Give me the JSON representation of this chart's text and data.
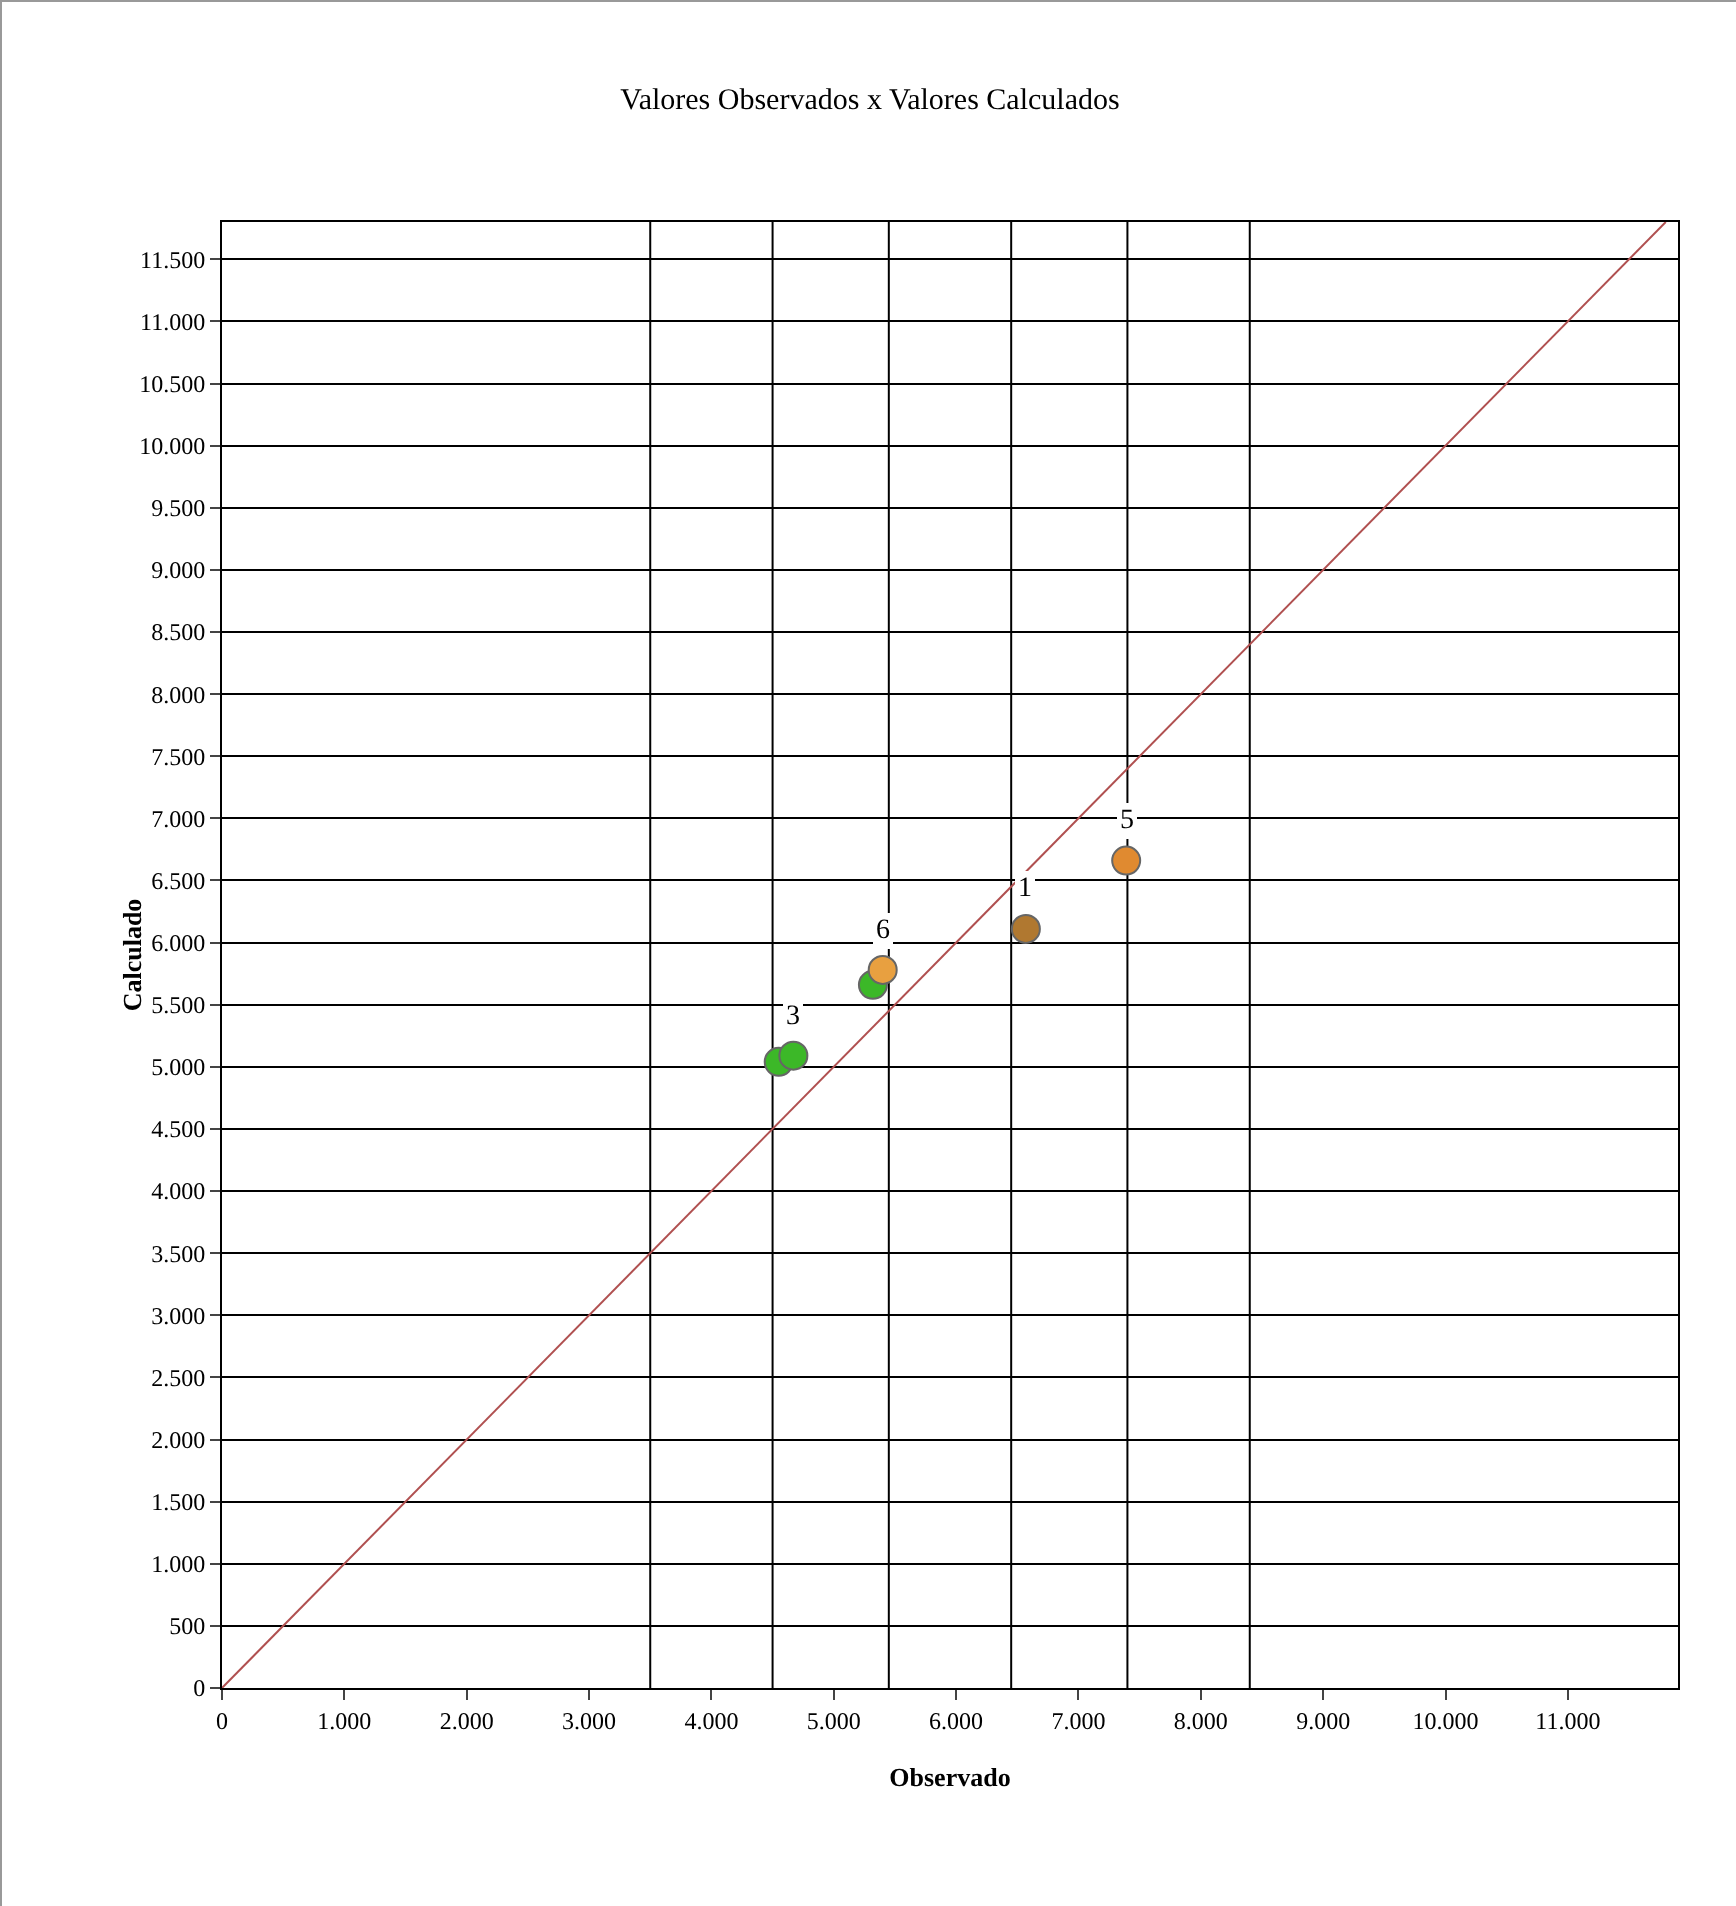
{
  "chart_data": {
    "type": "scatter",
    "title": "Valores Observados x Valores Calculados",
    "xlabel": "Observado",
    "ylabel": "Calculado",
    "series": [
      {
        "x": [
          4550,
          4670,
          5320,
          5400,
          6570,
          7390
        ],
        "values": [
          5040,
          5090,
          5660,
          5780,
          6110,
          6660
        ],
        "colors": [
          "#3cb828",
          "#3cb828",
          "#3cb828",
          "#e8a040",
          "#b07830",
          "#e08a30"
        ]
      },
      {
        "type": "line",
        "x": [
          0,
          11800
        ],
        "values": [
          0,
          11800
        ],
        "color": "#b05050",
        "marker": "none"
      }
    ],
    "annotations": [
      {
        "text": "3",
        "x": 4670,
        "y": 5090
      },
      {
        "text": "6",
        "x": 5400,
        "y": 5780
      },
      {
        "text": "1",
        "x": 6570,
        "y": 6110
      },
      {
        "text": "5",
        "x": 7390,
        "y": 6660
      }
    ],
    "ref_lines": [
      {
        "axis": "x",
        "value": 3500,
        "color": "#000000"
      },
      {
        "axis": "x",
        "value": 4500,
        "color": "#000000"
      },
      {
        "axis": "x",
        "value": 5450,
        "color": "#000000"
      },
      {
        "axis": "x",
        "value": 6450,
        "color": "#000000"
      },
      {
        "axis": "x",
        "value": 7400,
        "color": "#000000"
      },
      {
        "axis": "x",
        "value": 8400,
        "color": "#000000"
      }
    ],
    "xlim": [
      0,
      11900
    ],
    "ylim": [
      0,
      11800
    ],
    "xticks": [
      0,
      {
        "value": 1000,
        "label": "1.000"
      },
      {
        "value": 2000,
        "label": "2.000"
      },
      {
        "value": 3000,
        "label": "3.000"
      },
      {
        "value": 4000,
        "label": "4.000"
      },
      {
        "value": 5000,
        "label": "5.000"
      },
      {
        "value": 6000,
        "label": "6.000"
      },
      {
        "value": 7000,
        "label": "7.000"
      },
      {
        "value": 8000,
        "label": "8.000"
      },
      {
        "value": 9000,
        "label": "9.000"
      },
      {
        "value": 10000,
        "label": "10.000"
      },
      {
        "value": 11000,
        "label": "11.000"
      }
    ],
    "yticks": [
      0,
      500,
      {
        "value": 1000,
        "label": "1.000"
      },
      {
        "value": 1500,
        "label": "1.500"
      },
      {
        "value": 2000,
        "label": "2.000"
      },
      {
        "value": 2500,
        "label": "2.500"
      },
      {
        "value": 3000,
        "label": "3.000"
      },
      {
        "value": 3500,
        "label": "3.500"
      },
      {
        "value": 4000,
        "label": "4.000"
      },
      {
        "value": 4500,
        "label": "4.500"
      },
      {
        "value": 5000,
        "label": "5.000"
      },
      {
        "value": 5500,
        "label": "5.500"
      },
      {
        "value": 6000,
        "label": "6.000"
      },
      {
        "value": 6500,
        "label": "6.500"
      },
      {
        "value": 7000,
        "label": "7.000"
      },
      {
        "value": 7500,
        "label": "7.500"
      },
      {
        "value": 8000,
        "label": "8.000"
      },
      {
        "value": 8500,
        "label": "8.500"
      },
      {
        "value": 9000,
        "label": "9.000"
      },
      {
        "value": 9500,
        "label": "9.500"
      },
      {
        "value": 10000,
        "label": "10.000"
      },
      {
        "value": 10500,
        "label": "10.500"
      },
      {
        "value": 11000,
        "label": "11.000"
      },
      {
        "value": 11500,
        "label": "11.500"
      }
    ],
    "grid": "y",
    "marker": "circle"
  }
}
